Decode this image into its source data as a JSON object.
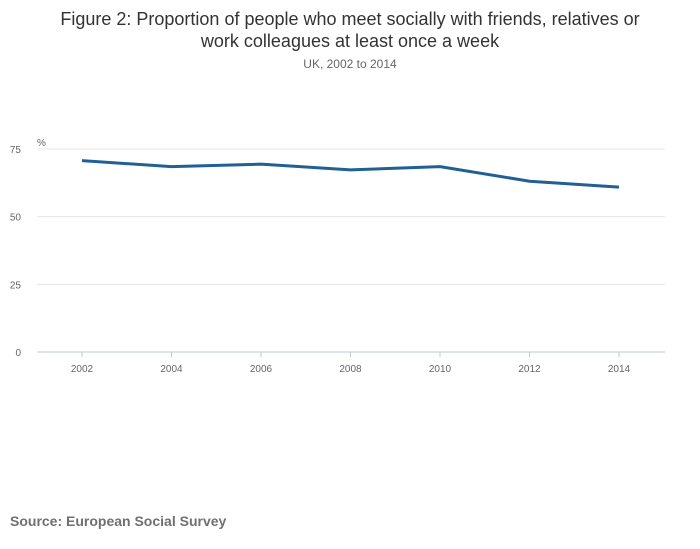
{
  "chart_data": {
    "type": "line",
    "title": "Figure 2: Proportion of people who meet socially with friends, relatives or work colleagues at least once a week",
    "title_line1": "Figure 2: Proportion of people who meet socially with friends, relatives or",
    "title_line2": "work colleagues at least once a week",
    "subtitle": "UK, 2002 to 2014",
    "ylabel": "%",
    "xlabel": "",
    "x": [
      "2002",
      "2004",
      "2006",
      "2008",
      "2010",
      "2012",
      "2014"
    ],
    "series": [
      {
        "name": "UK",
        "values": [
          70.7,
          68.5,
          69.4,
          67.3,
          68.5,
          63.1,
          60.9
        ],
        "color": "#206095"
      }
    ],
    "ylim": [
      0,
      75
    ],
    "yticks": [
      0,
      25,
      50,
      75
    ],
    "grid": true
  },
  "source": "Source: European Social Survey"
}
